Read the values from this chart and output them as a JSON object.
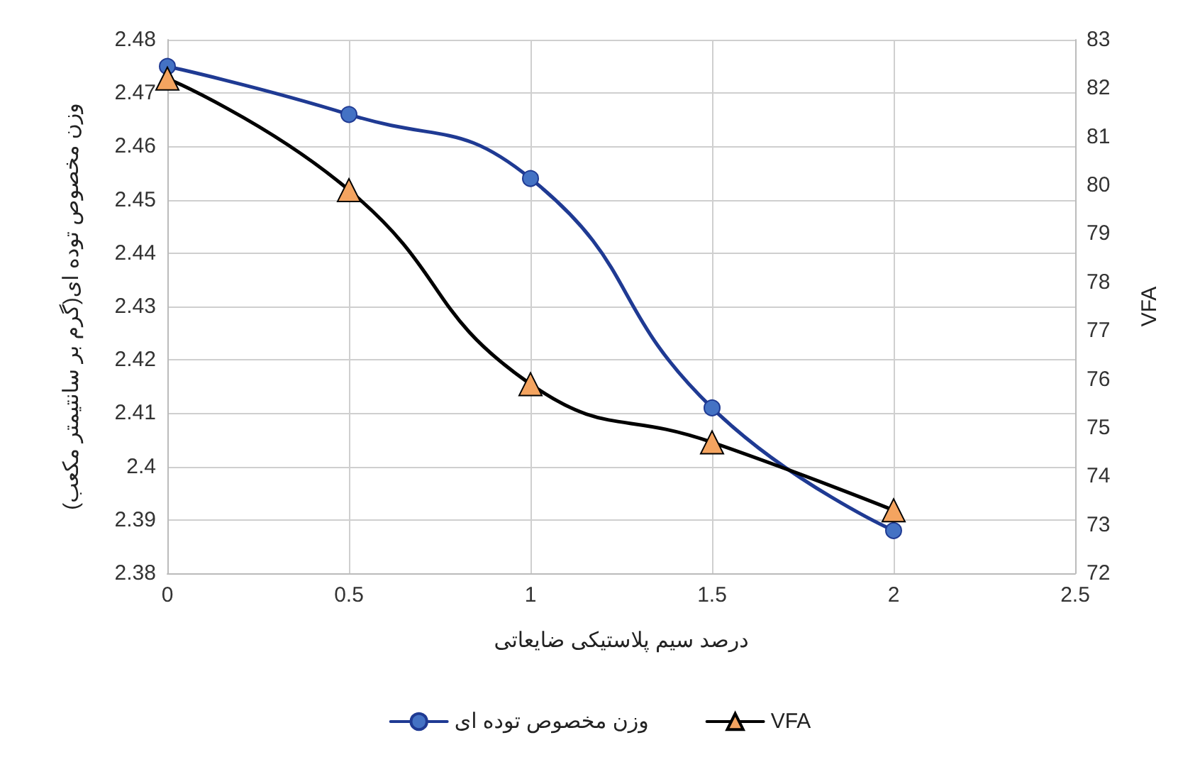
{
  "chart_data": {
    "type": "line",
    "xlabel": "درصد سیم پلاستیکی ضایعاتی",
    "ylabel": "وزن مخصوص توده ای(گرم بر سانتیمتر مکعب)",
    "y2label": "VFA",
    "x": [
      0,
      0.5,
      1,
      1.5,
      2
    ],
    "series": [
      {
        "name": "وزن مخصوص توده ای",
        "color": "#1f3a93",
        "marker": "circle",
        "values": [
          2.475,
          2.466,
          2.454,
          2.411,
          2.388
        ]
      },
      {
        "name": "VFA",
        "color": "#000000",
        "marker": "triangle",
        "axis": "y2",
        "values": [
          82.2,
          79.9,
          75.9,
          74.7,
          73.3
        ]
      }
    ],
    "xlim": [
      0,
      2.5
    ],
    "xticks": [
      0,
      0.5,
      1,
      1.5,
      2,
      2.5
    ],
    "ylim": [
      2.38,
      2.48
    ],
    "yticks": [
      2.38,
      2.39,
      2.4,
      2.41,
      2.42,
      2.43,
      2.44,
      2.45,
      2.46,
      2.47,
      2.48
    ],
    "y2lim": [
      72,
      83
    ],
    "y2ticks": [
      72,
      73,
      74,
      75,
      76,
      77,
      78,
      79,
      80,
      81,
      82,
      83
    ],
    "grid": true,
    "legend": "bottom"
  }
}
